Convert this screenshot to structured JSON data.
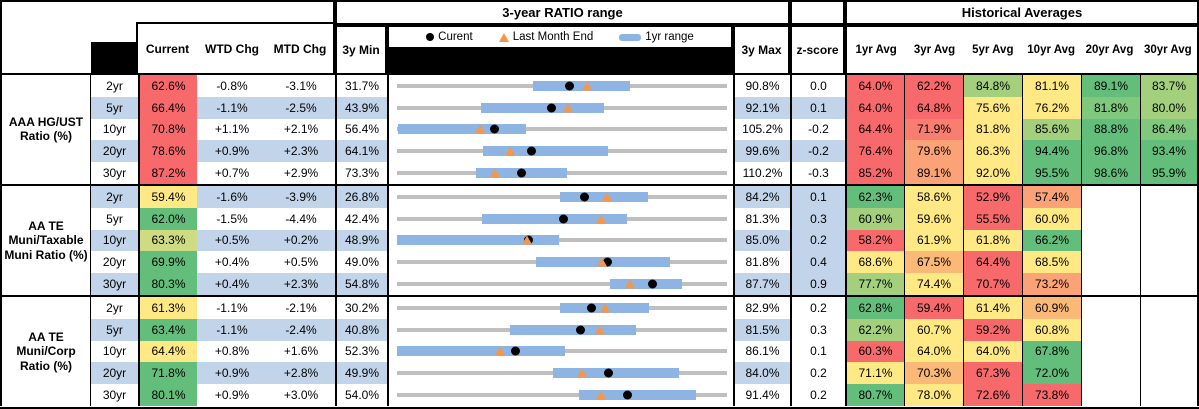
{
  "title_row": {
    "range_title": "3-year RATIO range",
    "hist_title": "Historical Averages"
  },
  "column_headers": {
    "current": "Current",
    "wtd_chg": "WTD Chg",
    "mtd_chg": "MTD Chg",
    "min_3y": "3y Min",
    "max_3y": "3y Max",
    "z_score": "z-score",
    "averages": [
      "1yr Avg",
      "3yr Avg",
      "5yr Avg",
      "10yr Avg",
      "20yr Avg",
      "30yr Avg"
    ]
  },
  "legend": {
    "current": "Curent",
    "last_month": "Last Month End",
    "range_1yr": "1yr range"
  },
  "colors": {
    "red": "#F8696B",
    "red_orange": "#F97E70",
    "orange": "#FBA376",
    "light_orange": "#FBB978",
    "yellow": "#FFE984",
    "yellow_green": "#CEDB82",
    "light_green": "#A4D07E",
    "med_green": "#7FC87D",
    "green": "#63BE7B",
    "white": "#FFFFFF",
    "row_blue": "#C2D4EA",
    "bar_blue": "#8DB4E2",
    "track_gray": "#BFBFBF",
    "marker_orange": "#F79646",
    "marker_black": "#000000"
  },
  "chart_data": {
    "type": "table",
    "embedded_chart": "bullet-range (per row: gray 3y range track, blue 1yr range bar, black dot = current, orange triangle = last month end)",
    "groups": [
      {
        "label": "AAA HG/UST Ratio (%)",
        "rows": [
          {
            "tenor": "2yr",
            "zebra": "w",
            "current": 62.6,
            "current_bg": "red",
            "wtd_chg": "-0.8%",
            "mtd_chg": "-3.1%",
            "min_3y": 31.7,
            "max_3y": 90.8,
            "z_score": "0.0",
            "z_bg": "w",
            "last_month": 65.7,
            "range_1yr": [
              56.1,
              73.5
            ],
            "averages": [
              [
                "64.0%",
                "red"
              ],
              [
                "62.2%",
                "red"
              ],
              [
                "84.8%",
                "light_green"
              ],
              [
                "81.1%",
                "yellow"
              ],
              [
                "89.1%",
                "green"
              ],
              [
                "83.7%",
                "light_green"
              ]
            ]
          },
          {
            "tenor": "5yr",
            "zebra": "b",
            "current": 66.4,
            "current_bg": "red",
            "wtd_chg": "-1.1%",
            "mtd_chg": "-2.5%",
            "min_3y": 43.9,
            "max_3y": 92.1,
            "z_score": "0.1",
            "z_bg": "b",
            "last_month": 68.9,
            "range_1yr": [
              56.2,
              74.1
            ],
            "averages": [
              [
                "64.0%",
                "red"
              ],
              [
                "64.8%",
                "red"
              ],
              [
                "75.6%",
                "yellow"
              ],
              [
                "76.2%",
                "yellow"
              ],
              [
                "81.8%",
                "med_green"
              ],
              [
                "80.0%",
                "light_green"
              ]
            ]
          },
          {
            "tenor": "10yr",
            "zebra": "w",
            "current": 70.8,
            "current_bg": "red",
            "wtd_chg": "+1.1%",
            "mtd_chg": "+2.1%",
            "min_3y": 56.4,
            "max_3y": 105.2,
            "z_score": "-0.2",
            "z_bg": "w",
            "last_month": 68.7,
            "range_1yr": [
              56.6,
              75.5
            ],
            "averages": [
              [
                "64.4%",
                "red"
              ],
              [
                "71.9%",
                "red_orange"
              ],
              [
                "81.8%",
                "yellow"
              ],
              [
                "85.6%",
                "light_green"
              ],
              [
                "88.8%",
                "green"
              ],
              [
                "86.4%",
                "med_green"
              ]
            ]
          },
          {
            "tenor": "20yr",
            "zebra": "b",
            "current": 78.6,
            "current_bg": "red",
            "wtd_chg": "+0.9%",
            "mtd_chg": "+2.3%",
            "min_3y": 64.1,
            "max_3y": 99.6,
            "z_score": "-0.2",
            "z_bg": "b",
            "last_month": 76.3,
            "range_1yr": [
              73.3,
              86.8
            ],
            "averages": [
              [
                "76.4%",
                "red"
              ],
              [
                "79.6%",
                "orange"
              ],
              [
                "86.3%",
                "yellow"
              ],
              [
                "94.4%",
                "green"
              ],
              [
                "96.8%",
                "green"
              ],
              [
                "93.4%",
                "green"
              ]
            ]
          },
          {
            "tenor": "30yr",
            "zebra": "w",
            "current": 87.2,
            "current_bg": "red",
            "wtd_chg": "+0.7%",
            "mtd_chg": "+2.9%",
            "min_3y": 73.3,
            "max_3y": 110.2,
            "z_score": "-0.3",
            "z_bg": "w",
            "last_month": 84.3,
            "range_1yr": [
              82.1,
              92.3
            ],
            "averages": [
              [
                "85.2%",
                "red"
              ],
              [
                "89.1%",
                "orange"
              ],
              [
                "92.0%",
                "yellow"
              ],
              [
                "95.5%",
                "green"
              ],
              [
                "98.6%",
                "green"
              ],
              [
                "95.9%",
                "green"
              ]
            ]
          }
        ]
      },
      {
        "label": "AA TE Muni/Taxable Muni Ratio (%)",
        "rows": [
          {
            "tenor": "2yr",
            "zebra": "b",
            "current": 59.4,
            "current_bg": "yellow",
            "wtd_chg": "-1.6%",
            "mtd_chg": "-3.9%",
            "min_3y": 26.8,
            "max_3y": 84.2,
            "z_score": "0.1",
            "z_bg": "b",
            "last_month": 63.3,
            "range_1yr": [
              55.2,
              70.5
            ],
            "averages": [
              [
                "62.3%",
                "green"
              ],
              [
                "58.6%",
                "yellow"
              ],
              [
                "52.9%",
                "red"
              ],
              [
                "57.4%",
                "orange"
              ],
              [
                "",
                ""
              ],
              [
                "",
                ""
              ]
            ]
          },
          {
            "tenor": "5yr",
            "zebra": "w",
            "current": 62.0,
            "current_bg": "green",
            "wtd_chg": "-1.5%",
            "mtd_chg": "-4.4%",
            "min_3y": 42.4,
            "max_3y": 81.3,
            "z_score": "0.3",
            "z_bg": "b",
            "last_month": 66.4,
            "range_1yr": [
              52.4,
              69.5
            ],
            "averages": [
              [
                "60.9%",
                "light_green"
              ],
              [
                "59.6%",
                "yellow"
              ],
              [
                "55.5%",
                "red"
              ],
              [
                "60.0%",
                "yellow"
              ],
              [
                "",
                ""
              ],
              [
                "",
                ""
              ]
            ]
          },
          {
            "tenor": "10yr",
            "zebra": "b",
            "current": 63.3,
            "current_bg": "yellow_green",
            "wtd_chg": "+0.5%",
            "mtd_chg": "+0.2%",
            "min_3y": 48.9,
            "max_3y": 85.0,
            "z_score": "0.2",
            "z_bg": "b",
            "last_month": 63.1,
            "range_1yr": [
              48.9,
              66.6
            ],
            "averages": [
              [
                "58.2%",
                "red"
              ],
              [
                "61.9%",
                "yellow"
              ],
              [
                "61.8%",
                "yellow"
              ],
              [
                "66.2%",
                "green"
              ],
              [
                "",
                ""
              ],
              [
                "",
                ""
              ]
            ]
          },
          {
            "tenor": "20yr",
            "zebra": "w",
            "current": 69.9,
            "current_bg": "green",
            "wtd_chg": "+0.4%",
            "mtd_chg": "+0.5%",
            "min_3y": 49.0,
            "max_3y": 81.8,
            "z_score": "0.4",
            "z_bg": "b",
            "last_month": 69.4,
            "range_1yr": [
              62.8,
              76.1
            ],
            "averages": [
              [
                "68.6%",
                "yellow"
              ],
              [
                "67.5%",
                "light_orange"
              ],
              [
                "64.4%",
                "red"
              ],
              [
                "68.5%",
                "yellow"
              ],
              [
                "",
                ""
              ],
              [
                "",
                ""
              ]
            ]
          },
          {
            "tenor": "30yr",
            "zebra": "b",
            "current": 80.3,
            "current_bg": "green",
            "wtd_chg": "+0.4%",
            "mtd_chg": "+2.3%",
            "min_3y": 54.8,
            "max_3y": 87.7,
            "z_score": "0.9",
            "z_bg": "b",
            "last_month": 78.0,
            "range_1yr": [
              76.0,
              83.2
            ],
            "averages": [
              [
                "77.7%",
                "light_green"
              ],
              [
                "74.4%",
                "yellow"
              ],
              [
                "70.7%",
                "red"
              ],
              [
                "73.2%",
                "orange"
              ],
              [
                "",
                ""
              ],
              [
                "",
                ""
              ]
            ]
          }
        ]
      },
      {
        "label": "AA TE Muni/Corp Ratio (%)",
        "rows": [
          {
            "tenor": "2yr",
            "zebra": "w",
            "current": 61.3,
            "current_bg": "yellow",
            "wtd_chg": "-1.1%",
            "mtd_chg": "-2.1%",
            "min_3y": 30.2,
            "max_3y": 82.9,
            "z_score": "0.2",
            "z_bg": "w",
            "last_month": 63.4,
            "range_1yr": [
              56.2,
              70.5
            ],
            "averages": [
              [
                "62.8%",
                "green"
              ],
              [
                "59.4%",
                "red"
              ],
              [
                "61.4%",
                "yellow"
              ],
              [
                "60.9%",
                "light_orange"
              ],
              [
                "",
                ""
              ],
              [
                "",
                ""
              ]
            ]
          },
          {
            "tenor": "5yr",
            "zebra": "b",
            "current": 63.4,
            "current_bg": "green",
            "wtd_chg": "-1.1%",
            "mtd_chg": "-2.4%",
            "min_3y": 40.8,
            "max_3y": 81.5,
            "z_score": "0.3",
            "z_bg": "w",
            "last_month": 65.8,
            "range_1yr": [
              54.7,
              70.3
            ],
            "averages": [
              [
                "62.2%",
                "light_green"
              ],
              [
                "60.7%",
                "yellow"
              ],
              [
                "59.2%",
                "red"
              ],
              [
                "60.8%",
                "yellow"
              ],
              [
                "",
                ""
              ],
              [
                "",
                ""
              ]
            ]
          },
          {
            "tenor": "10yr",
            "zebra": "w",
            "current": 64.4,
            "current_bg": "yellow",
            "wtd_chg": "+0.8%",
            "mtd_chg": "+1.6%",
            "min_3y": 52.3,
            "max_3y": 86.1,
            "z_score": "0.1",
            "z_bg": "w",
            "last_month": 62.8,
            "range_1yr": [
              52.3,
              69.5
            ],
            "averages": [
              [
                "60.3%",
                "red"
              ],
              [
                "64.0%",
                "yellow"
              ],
              [
                "64.0%",
                "yellow"
              ],
              [
                "67.8%",
                "green"
              ],
              [
                "",
                ""
              ],
              [
                "",
                ""
              ]
            ]
          },
          {
            "tenor": "20yr",
            "zebra": "b",
            "current": 71.8,
            "current_bg": "green",
            "wtd_chg": "+0.9%",
            "mtd_chg": "+2.8%",
            "min_3y": 49.9,
            "max_3y": 84.0,
            "z_score": "0.2",
            "z_bg": "w",
            "last_month": 69.0,
            "range_1yr": [
              66.0,
              79.0
            ],
            "averages": [
              [
                "71.1%",
                "yellow"
              ],
              [
                "70.3%",
                "light_orange"
              ],
              [
                "67.3%",
                "red"
              ],
              [
                "72.0%",
                "green"
              ],
              [
                "",
                ""
              ],
              [
                "",
                ""
              ]
            ]
          },
          {
            "tenor": "30yr",
            "zebra": "w",
            "current": 80.1,
            "current_bg": "green",
            "wtd_chg": "+0.9%",
            "mtd_chg": "+3.0%",
            "min_3y": 54.0,
            "max_3y": 91.4,
            "z_score": "0.2",
            "z_bg": "w",
            "last_month": 77.1,
            "range_1yr": [
              74.6,
              87.9
            ],
            "averages": [
              [
                "80.7%",
                "green"
              ],
              [
                "78.0%",
                "yellow"
              ],
              [
                "72.6%",
                "red"
              ],
              [
                "73.8%",
                "red"
              ],
              [
                "",
                ""
              ],
              [
                "",
                ""
              ]
            ]
          }
        ]
      }
    ]
  }
}
